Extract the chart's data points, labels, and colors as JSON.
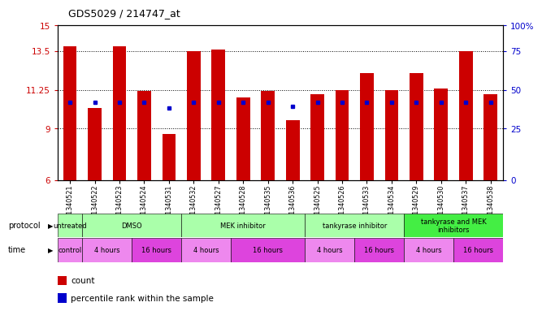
{
  "title": "GDS5029 / 214747_at",
  "samples": [
    "GSM1340521",
    "GSM1340522",
    "GSM1340523",
    "GSM1340524",
    "GSM1340531",
    "GSM1340532",
    "GSM1340527",
    "GSM1340528",
    "GSM1340535",
    "GSM1340536",
    "GSM1340525",
    "GSM1340526",
    "GSM1340533",
    "GSM1340534",
    "GSM1340529",
    "GSM1340530",
    "GSM1340537",
    "GSM1340538"
  ],
  "red_values": [
    13.8,
    10.2,
    13.8,
    11.2,
    8.7,
    13.5,
    13.6,
    10.8,
    11.2,
    9.5,
    11.0,
    11.25,
    12.2,
    11.25,
    12.2,
    11.3,
    13.5,
    11.0
  ],
  "blue_values": [
    10.5,
    10.5,
    10.5,
    10.5,
    10.2,
    10.5,
    10.5,
    10.5,
    10.5,
    10.3,
    10.5,
    10.5,
    10.5,
    10.5,
    10.5,
    10.5,
    10.5,
    10.5
  ],
  "ymin": 6,
  "ymax": 15,
  "yticks": [
    6,
    9,
    11.25,
    13.5,
    15
  ],
  "ytick_labels": [
    "6",
    "9",
    "11.25",
    "13.5",
    "15"
  ],
  "right_yticks": [
    6,
    9,
    11.25,
    13.5,
    15
  ],
  "right_ytick_labels": [
    "0",
    "25",
    "50",
    "75",
    "100%"
  ],
  "dotted_lines": [
    9,
    11.25,
    13.5
  ],
  "protocols": [
    {
      "label": "untreated",
      "start": 0,
      "end": 1,
      "color": "#aaffaa"
    },
    {
      "label": "DMSO",
      "start": 1,
      "end": 5,
      "color": "#aaffaa"
    },
    {
      "label": "MEK inhibitor",
      "start": 5,
      "end": 10,
      "color": "#aaffaa"
    },
    {
      "label": "tankyrase inhibitor",
      "start": 10,
      "end": 14,
      "color": "#aaffaa"
    },
    {
      "label": "tankyrase and MEK\ninhibitors",
      "start": 14,
      "end": 18,
      "color": "#44ee44"
    }
  ],
  "times": [
    {
      "label": "control",
      "start": 0,
      "end": 1,
      "color": "#ee88ee"
    },
    {
      "label": "4 hours",
      "start": 1,
      "end": 3,
      "color": "#ee88ee"
    },
    {
      "label": "16 hours",
      "start": 3,
      "end": 5,
      "color": "#dd44dd"
    },
    {
      "label": "4 hours",
      "start": 5,
      "end": 7,
      "color": "#ee88ee"
    },
    {
      "label": "16 hours",
      "start": 7,
      "end": 10,
      "color": "#dd44dd"
    },
    {
      "label": "4 hours",
      "start": 10,
      "end": 12,
      "color": "#ee88ee"
    },
    {
      "label": "16 hours",
      "start": 12,
      "end": 14,
      "color": "#dd44dd"
    },
    {
      "label": "4 hours",
      "start": 14,
      "end": 16,
      "color": "#ee88ee"
    },
    {
      "label": "16 hours",
      "start": 16,
      "end": 18,
      "color": "#dd44dd"
    }
  ],
  "bar_color": "#cc0000",
  "blue_marker_color": "#0000cc",
  "bg_color": "#ffffff",
  "tick_label_color_left": "#cc0000",
  "tick_label_color_right": "#0000cc",
  "ax_facecolor": "#ffffff",
  "n_samples": 18
}
